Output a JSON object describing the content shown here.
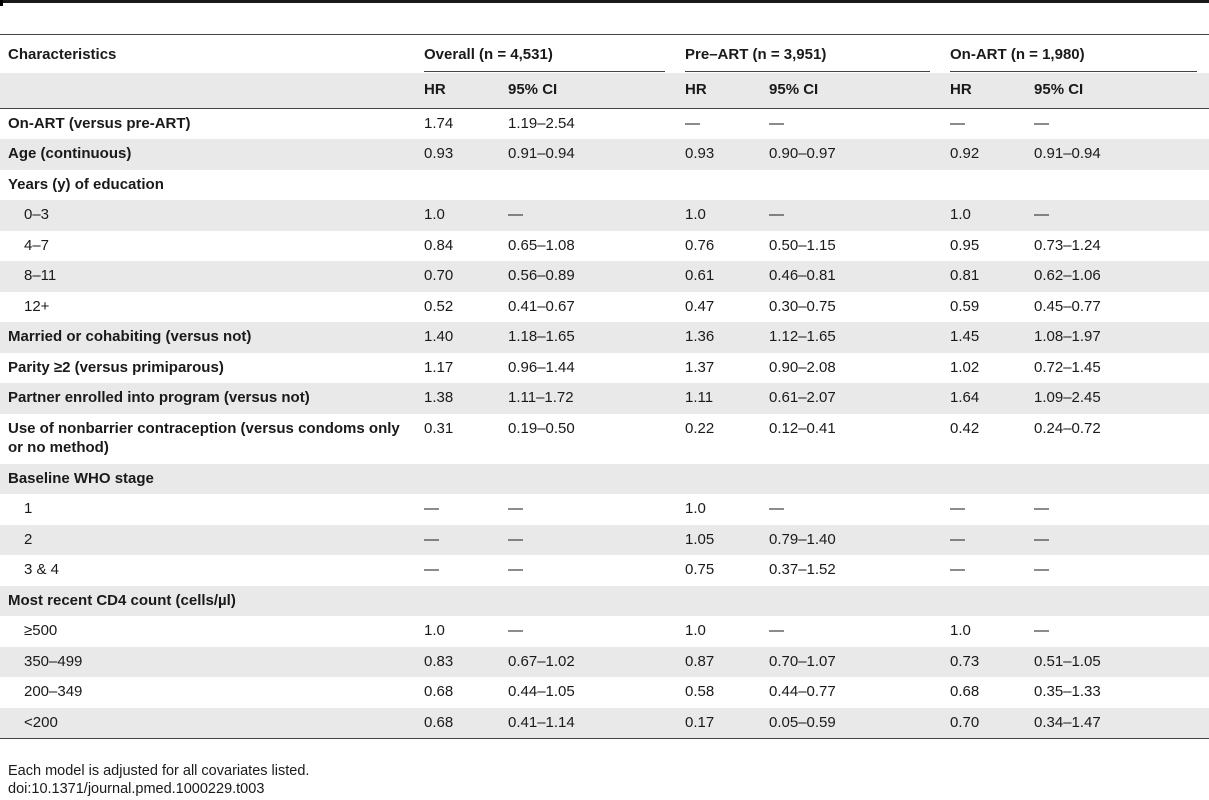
{
  "table": {
    "col_characteristics": "Characteristics",
    "groups": [
      {
        "label": "Overall (n = 4,531)"
      },
      {
        "label": "Pre–ART (n = 3,951)"
      },
      {
        "label": "On-ART (n = 1,980)"
      }
    ],
    "sub_hr": "HR",
    "sub_ci": "95% CI",
    "rows": [
      {
        "label": "On-ART (versus pre-ART)",
        "bold": true,
        "shade": false,
        "cells": [
          "1.74",
          "1.19–2.54",
          "—",
          "—",
          "—",
          "—"
        ]
      },
      {
        "label": "Age (continuous)",
        "bold": true,
        "shade": true,
        "cells": [
          "0.93",
          "0.91–0.94",
          "0.93",
          "0.90–0.97",
          "0.92",
          "0.91–0.94"
        ]
      },
      {
        "label": "Years (y) of education",
        "bold": true,
        "shade": false,
        "cells": [
          "",
          "",
          "",
          "",
          "",
          ""
        ]
      },
      {
        "label": "0–3",
        "indent": true,
        "shade": true,
        "cells": [
          "1.0",
          "—",
          "1.0",
          "—",
          "1.0",
          "—"
        ]
      },
      {
        "label": "4–7",
        "indent": true,
        "shade": false,
        "cells": [
          "0.84",
          "0.65–1.08",
          "0.76",
          "0.50–1.15",
          "0.95",
          "0.73–1.24"
        ]
      },
      {
        "label": "8–11",
        "indent": true,
        "shade": true,
        "cells": [
          "0.70",
          "0.56–0.89",
          "0.61",
          "0.46–0.81",
          "0.81",
          "0.62–1.06"
        ]
      },
      {
        "label": "12+",
        "indent": true,
        "shade": false,
        "cells": [
          "0.52",
          "0.41–0.67",
          "0.47",
          "0.30–0.75",
          "0.59",
          "0.45–0.77"
        ]
      },
      {
        "label": "Married or cohabiting (versus not)",
        "bold": true,
        "shade": true,
        "cells": [
          "1.40",
          "1.18–1.65",
          "1.36",
          "1.12–1.65",
          "1.45",
          "1.08–1.97"
        ]
      },
      {
        "label": "Parity ≥2 (versus primiparous)",
        "bold": true,
        "shade": false,
        "cells": [
          "1.17",
          "0.96–1.44",
          "1.37",
          "0.90–2.08",
          "1.02",
          "0.72–1.45"
        ]
      },
      {
        "label": "Partner enrolled into program (versus not)",
        "bold": true,
        "shade": true,
        "cells": [
          "1.38",
          "1.11–1.72",
          "1.11",
          "0.61–2.07",
          "1.64",
          "1.09–2.45"
        ]
      },
      {
        "label": "Use of nonbarrier contraception (versus condoms only or no method)",
        "bold": true,
        "shade": false,
        "tall": true,
        "cells": [
          "0.31",
          "0.19–0.50",
          "0.22",
          "0.12–0.41",
          "0.42",
          "0.24–0.72"
        ]
      },
      {
        "label": "Baseline WHO stage",
        "bold": true,
        "shade": true,
        "cells": [
          "",
          "",
          "",
          "",
          "",
          ""
        ]
      },
      {
        "label": "1",
        "indent": true,
        "shade": false,
        "cells": [
          "—",
          "—",
          "1.0",
          "—",
          "—",
          "—"
        ]
      },
      {
        "label": "2",
        "indent": true,
        "shade": true,
        "cells": [
          "—",
          "—",
          "1.05",
          "0.79–1.40",
          "—",
          "—"
        ]
      },
      {
        "label": "3 & 4",
        "indent": true,
        "shade": false,
        "cells": [
          "—",
          "—",
          "0.75",
          "0.37–1.52",
          "—",
          "—"
        ]
      },
      {
        "label": "Most recent CD4 count (cells/µl)",
        "bold": true,
        "shade": true,
        "cells": [
          "",
          "",
          "",
          "",
          "",
          ""
        ]
      },
      {
        "label": "≥500",
        "indent": true,
        "shade": false,
        "cells": [
          "1.0",
          "—",
          "1.0",
          "—",
          "1.0",
          "—"
        ]
      },
      {
        "label": "350–499",
        "indent": true,
        "shade": true,
        "cells": [
          "0.83",
          "0.67–1.02",
          "0.87",
          "0.70–1.07",
          "0.73",
          "0.51–1.05"
        ]
      },
      {
        "label": "200–349",
        "indent": true,
        "shade": false,
        "cells": [
          "0.68",
          "0.44–1.05",
          "0.58",
          "0.44–0.77",
          "0.68",
          "0.35–1.33"
        ]
      },
      {
        "label": "<200",
        "indent": true,
        "shade": true,
        "cells": [
          "0.68",
          "0.41–1.14",
          "0.17",
          "0.05–0.59",
          "0.70",
          "0.34–1.47"
        ]
      }
    ]
  },
  "footer": {
    "note": "Each model is adjusted for all covariates listed.",
    "doi": "doi:10.1371/journal.pmed.1000229.t003"
  }
}
